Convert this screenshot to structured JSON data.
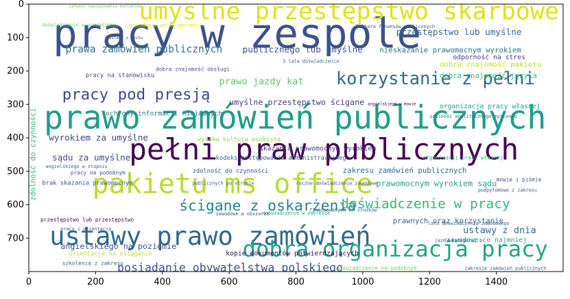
{
  "chart_data": {
    "type": "word_cloud",
    "x_ticks": [
      0,
      200,
      400,
      600,
      800,
      1000,
      1200,
      1400
    ],
    "y_ticks": [
      0,
      100,
      200,
      300,
      400,
      500,
      600,
      700
    ],
    "xlim": [
      0,
      1600
    ],
    "ylim": [
      0,
      800
    ],
    "y_inverted": true,
    "grid": false,
    "colors": {
      "dark_purple": "#440154",
      "purple": "#482878",
      "indigo": "#3b528b",
      "blue": "#31688e",
      "teal": "#26828e",
      "green": "#1f9e89",
      "lightgreen": "#35b779",
      "lime": "#6ece58",
      "yellowgreen": "#b5de2b",
      "yellow": "#fde725"
    },
    "words": [
      {
        "text": "pracy w zespole",
        "x": 72,
        "y": 130,
        "size": 122,
        "color": "#3b528b"
      },
      {
        "text": "umyślne przestępstwo skarbowe",
        "x": 330,
        "y": 45,
        "size": 72,
        "color": "#dfe318"
      },
      {
        "text": "prawo zamówień publicznych",
        "x": 45,
        "y": 372,
        "size": 96,
        "color": "#1f9e89"
      },
      {
        "text": "pełni praw publicznych",
        "x": 300,
        "y": 465,
        "size": 88,
        "color": "#440154"
      },
      {
        "text": "pakietu ms office",
        "x": 190,
        "y": 565,
        "size": 82,
        "color": "#b5de2b"
      },
      {
        "text": "ustawy prawo zamówień",
        "x": 62,
        "y": 720,
        "size": 76,
        "color": "#31688e"
      },
      {
        "text": "dobra organizacja pracy",
        "x": 640,
        "y": 755,
        "size": 66,
        "color": "#20a486"
      },
      {
        "text": "korzystanie z pełni",
        "x": 920,
        "y": 240,
        "size": 52,
        "color": "#31688e"
      },
      {
        "text": "pracy pod presją",
        "x": 100,
        "y": 285,
        "size": 46,
        "color": "#3e4989"
      },
      {
        "text": "ścigane z oskarżenia",
        "x": 450,
        "y": 617,
        "size": 44,
        "color": "#26828e"
      },
      {
        "text": "doświadczenie w pracy",
        "x": 935,
        "y": 610,
        "size": 40,
        "color": "#35b779"
      },
      {
        "text": "posiadanie obywatelstwa polskiego",
        "x": 265,
        "y": 800,
        "size": 34,
        "color": "#3b528b"
      },
      {
        "text": "prawa zamówień publicznych",
        "x": 110,
        "y": 145,
        "size": 30,
        "color": "#2c728e"
      },
      {
        "text": "prawo jazdy kat",
        "x": 570,
        "y": 240,
        "size": 28,
        "color": "#5ec962"
      },
      {
        "text": "przestępstwo lub umyślne",
        "x": 1100,
        "y": 92,
        "size": 26,
        "color": "#31688e"
      },
      {
        "text": "publicznego lub umyślne",
        "x": 640,
        "y": 145,
        "size": 26,
        "color": "#3b528b"
      },
      {
        "text": "nieskazanie prawomocnym wyrokiem",
        "x": 1050,
        "y": 145,
        "size": 22,
        "color": "#2c728e"
      },
      {
        "text": "umyślne przestępstwo ścigane",
        "x": 600,
        "y": 302,
        "size": 24,
        "color": "#433e85"
      },
      {
        "text": "wyrokiem za umyślne",
        "x": 60,
        "y": 408,
        "size": 26,
        "color": "#414487"
      },
      {
        "text": "sądu za umyślne",
        "x": 70,
        "y": 468,
        "size": 26,
        "color": "#3e4989"
      },
      {
        "text": "prawomocnym wyrokiem sądu",
        "x": 1040,
        "y": 545,
        "size": 24,
        "color": "#1f9e89"
      },
      {
        "text": "zakresu zamówień publicznych",
        "x": 940,
        "y": 505,
        "size": 22,
        "color": "#31688e"
      },
      {
        "text": "dobra znajomość pakietu",
        "x": 1230,
        "y": 188,
        "size": 22,
        "color": "#c8e020"
      },
      {
        "text": "dobra znajomość języka",
        "x": 1230,
        "y": 222,
        "size": 22,
        "color": "#35b779"
      },
      {
        "text": "odporność na stres",
        "x": 1270,
        "y": 165,
        "size": 20,
        "color": "#443a83"
      },
      {
        "text": "organizacja pracy własnej",
        "x": 1230,
        "y": 312,
        "size": 20,
        "color": "#1f9e89"
      },
      {
        "text": "ustawy z dnia",
        "x": 1300,
        "y": 685,
        "size": 28,
        "color": "#31688e"
      },
      {
        "text": "prawnych oraz korzystanie",
        "x": 1090,
        "y": 655,
        "size": 22,
        "color": "#31688e"
      },
      {
        "text": "zawodowe co najmniej",
        "x": 1250,
        "y": 712,
        "size": 20,
        "color": "#22a884"
      },
      {
        "text": "angielskiego na poziomie",
        "x": 95,
        "y": 732,
        "size": 24,
        "color": "#3b528b"
      },
      {
        "text": "skazania prawomocnym wyrokiem",
        "x": 690,
        "y": 438,
        "size": 20,
        "color": "#443983"
      },
      {
        "text": "kodeks postępowania administracyjnego",
        "x": 560,
        "y": 466,
        "size": 18,
        "color": "#31688e"
      },
      {
        "text": "ochrony informacji niejawnych",
        "x": 230,
        "y": 333,
        "size": 20,
        "color": "#2a788e"
      },
      {
        "text": "kopie dokumentów potwierdzających",
        "x": 590,
        "y": 752,
        "size": 20,
        "color": "#440154"
      },
      {
        "text": "orientacja na osiąganie",
        "x": 120,
        "y": 752,
        "size": 18,
        "color": "#b5de2b"
      },
      {
        "text": "zdolność do czynności",
        "x": 490,
        "y": 505,
        "size": 18,
        "color": "#3b528b"
      },
      {
        "text": "pracy na stanowisku",
        "x": 170,
        "y": 218,
        "size": 18,
        "color": "#414487"
      },
      {
        "text": "wysoka kultura osobista",
        "x": 505,
        "y": 410,
        "size": 18,
        "color": "#8fd744"
      },
      {
        "text": "brak skazania prawomocnym",
        "x": 40,
        "y": 540,
        "size": 18,
        "color": "#3b528b"
      },
      {
        "text": "organizacji pracy własnej",
        "x": 1180,
        "y": 465,
        "size": 16,
        "color": "#35b779"
      },
      {
        "text": "szkolenia z zakresu",
        "x": 100,
        "y": 780,
        "size": 16,
        "color": "#31688e"
      },
      {
        "text": "przestępstwo lub przestępstwo",
        "x": 35,
        "y": 650,
        "size": 16,
        "color": "#440154"
      },
      {
        "text": "doświadczenie na podobnym",
        "x": 920,
        "y": 795,
        "size": 16,
        "color": "#6ece58"
      },
      {
        "text": "pracy na podobnym",
        "x": 125,
        "y": 510,
        "size": 16,
        "color": "#3b528b"
      },
      {
        "text": "angielskiego w stopniu",
        "x": 50,
        "y": 490,
        "size": 14,
        "color": "#31688e"
      },
      {
        "text": "pracy i orientacja",
        "x": 95,
        "y": 677,
        "size": 14,
        "color": "#3b528b"
      },
      {
        "text": "dobra znajomość obsługi",
        "x": 380,
        "y": 200,
        "size": 16,
        "color": "#3b528b"
      },
      {
        "text": "zdolność analitycznego myślenia",
        "x": 1200,
        "y": 340,
        "size": 14,
        "color": "#31688e"
      },
      {
        "text": "roczne doświadczenie zawodowe",
        "x": 800,
        "y": 540,
        "size": 14,
        "color": "#3b528b"
      },
      {
        "text": "lata doświadczenia zawodowego",
        "x": 1195,
        "y": 660,
        "size": 14,
        "color": "#31688e"
      },
      {
        "text": "jazdy kategorii b",
        "x": 1215,
        "y": 712,
        "size": 14,
        "color": "#3b528b"
      },
      {
        "text": "zakresie zamówień publicznych",
        "x": 1305,
        "y": 795,
        "size": 14,
        "color": "#3b528b"
      },
      {
        "text": "finansowanych ze środków",
        "x": 840,
        "y": 620,
        "size": 14,
        "color": "#31688e"
      },
      {
        "text": "doświadczenie w zakresie",
        "x": 700,
        "y": 630,
        "size": 14,
        "color": "#1f9e89"
      },
      {
        "text": "zawodowe w obszarze",
        "x": 560,
        "y": 632,
        "size": 14,
        "color": "#3b528b"
      },
      {
        "text": "publicznych po stronie",
        "x": 490,
        "y": 540,
        "size": 14,
        "color": "#3b528b"
      },
      {
        "text": "mowie i piśmie",
        "x": 1400,
        "y": 530,
        "size": 16,
        "color": "#3b528b"
      },
      {
        "text": "podpyłomowe z zakresu",
        "x": 1345,
        "y": 561,
        "size": 14,
        "color": "#3b528b"
      },
      {
        "text": "posiadanie pełni zdolności",
        "x": 300,
        "y": 68,
        "size": 14,
        "color": "#dfe318"
      },
      {
        "text": "doświadczenie w prowadzeniu",
        "x": 40,
        "y": 67,
        "size": 14,
        "color": "#6ece58"
      },
      {
        "text": "zatwość nawiązywania kontaktów",
        "x": 120,
        "y": 10,
        "size": 12,
        "color": "#6ece58"
      },
      {
        "text": "ustawy o ruchu",
        "x": 240,
        "y": 105,
        "size": 12,
        "color": "#3b528b"
      },
      {
        "text": "lektora finansów publicznych",
        "x": 980,
        "y": 72,
        "size": 14,
        "color": "#3b528b"
      },
      {
        "text": "3 lata doświadczenia",
        "x": 760,
        "y": 175,
        "size": 14,
        "color": "#31688e"
      },
      {
        "text": "angielskiego w mowie",
        "x": 1015,
        "y": 303,
        "size": 12,
        "color": "#440154"
      },
      {
        "text": "zdolność do czynności",
        "x": 20,
        "y": 588,
        "size": 22,
        "color": "#35b779",
        "rot": 270
      }
    ]
  }
}
